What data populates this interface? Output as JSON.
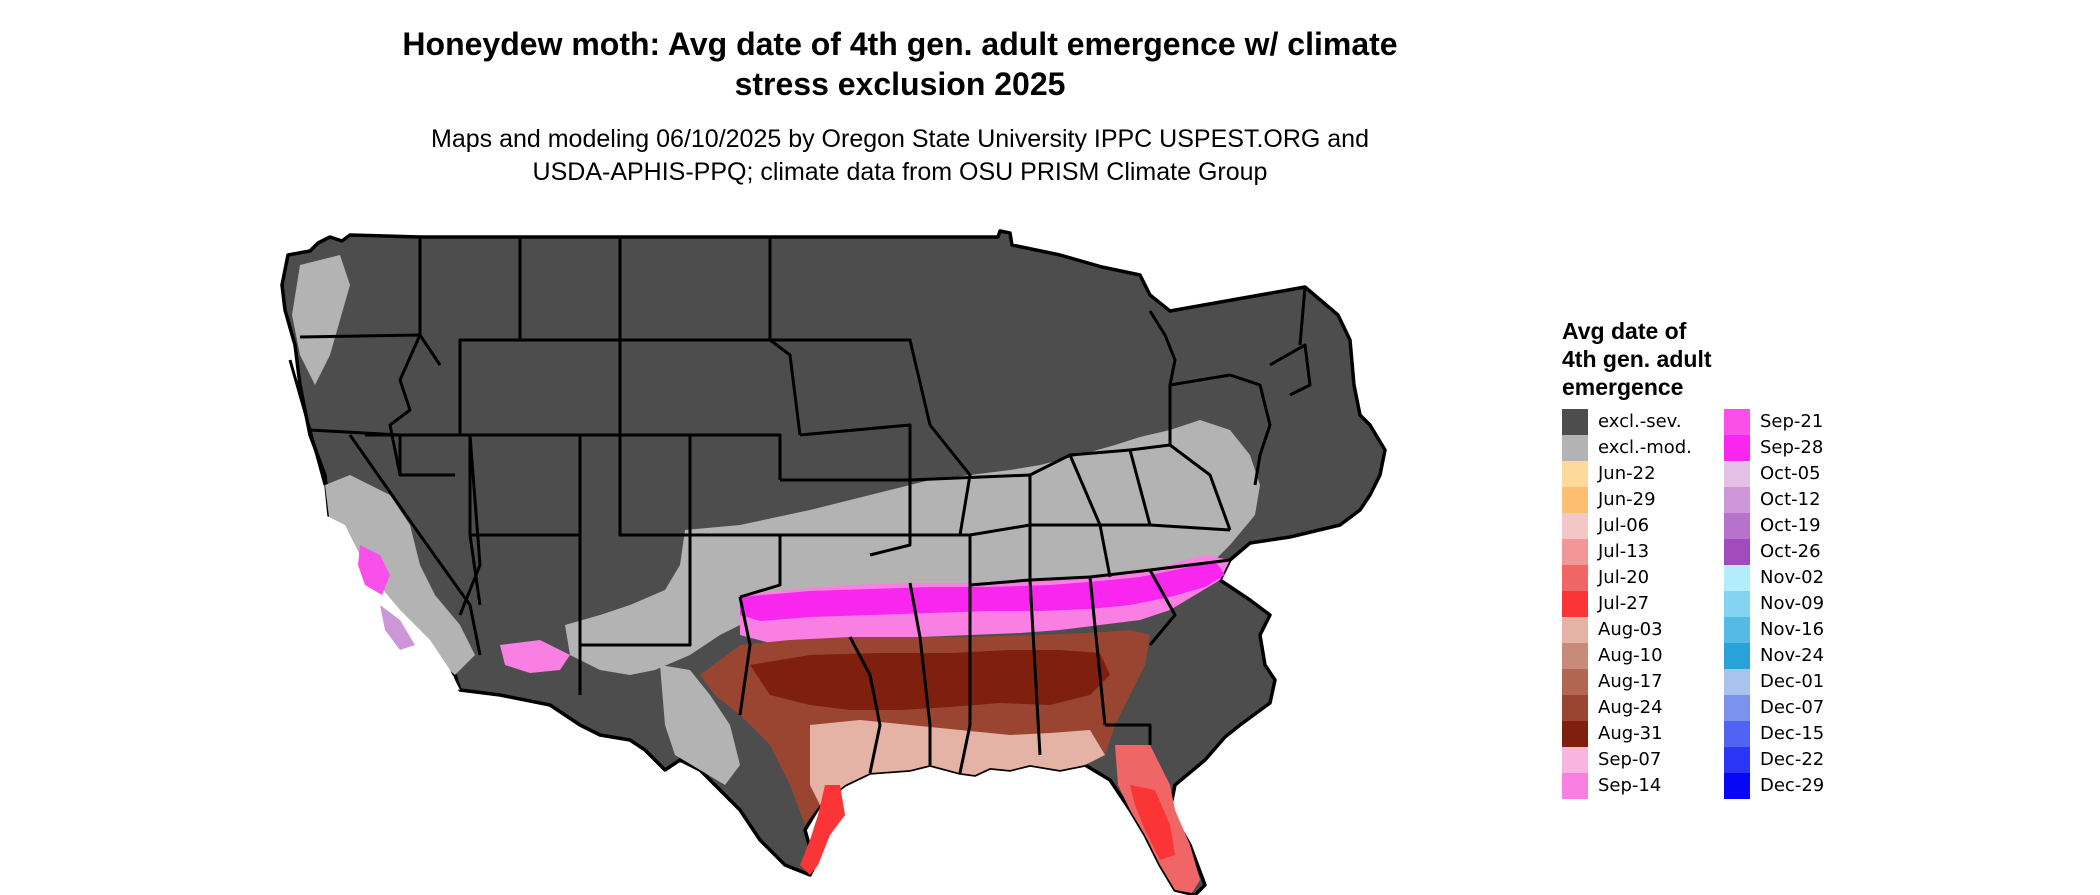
{
  "title_line1": "Honeydew moth: Avg date of 4th gen. adult emergence w/ climate",
  "title_line2": "stress exclusion 2025",
  "subtitle_line1": "Maps and modeling 06/10/2025 by Oregon State University IPPC USPEST.ORG and",
  "subtitle_line2": "USDA-APHIS-PPQ; climate data from OSU PRISM Climate Group",
  "legend": {
    "title_lines": [
      "Avg date of",
      "4th gen. adult",
      "emergence"
    ],
    "items": [
      {
        "label": "excl.-sev.",
        "color": "#4d4d4d"
      },
      {
        "label": "excl.-mod.",
        "color": "#b3b3b3"
      },
      {
        "label": "Jun-22",
        "color": "#fdd99b"
      },
      {
        "label": "Jun-29",
        "color": "#fdbe72"
      },
      {
        "label": "Jul-06",
        "color": "#f4c7c7"
      },
      {
        "label": "Jul-13",
        "color": "#f19797"
      },
      {
        "label": "Jul-20",
        "color": "#f06565"
      },
      {
        "label": "Jul-27",
        "color": "#fb3535"
      },
      {
        "label": "Aug-03",
        "color": "#e4b3a6"
      },
      {
        "label": "Aug-10",
        "color": "#c88b7a"
      },
      {
        "label": "Aug-17",
        "color": "#b06650"
      },
      {
        "label": "Aug-24",
        "color": "#9a4532"
      },
      {
        "label": "Aug-31",
        "color": "#7f1f0e"
      },
      {
        "label": "Sep-07",
        "color": "#f9b4e0"
      },
      {
        "label": "Sep-14",
        "color": "#fa7fe2"
      },
      {
        "label": "Sep-21",
        "color": "#f850e8"
      },
      {
        "label": "Sep-28",
        "color": "#f826ee"
      },
      {
        "label": "Oct-05",
        "color": "#e4bfe6"
      },
      {
        "label": "Oct-12",
        "color": "#cc96d8"
      },
      {
        "label": "Oct-19",
        "color": "#b772cc"
      },
      {
        "label": "Oct-26",
        "color": "#a24bbe"
      },
      {
        "label": "Nov-02",
        "color": "#b3ecfb"
      },
      {
        "label": "Nov-09",
        "color": "#82d4f2"
      },
      {
        "label": "Nov-16",
        "color": "#55bbe6"
      },
      {
        "label": "Nov-24",
        "color": "#28a2d8"
      },
      {
        "label": "Dec-01",
        "color": "#a9c2ee"
      },
      {
        "label": "Dec-07",
        "color": "#7b93ee"
      },
      {
        "label": "Dec-15",
        "color": "#5063f2"
      },
      {
        "label": "Dec-22",
        "color": "#2b36f4"
      },
      {
        "label": "Dec-29",
        "color": "#0707f6"
      }
    ]
  }
}
